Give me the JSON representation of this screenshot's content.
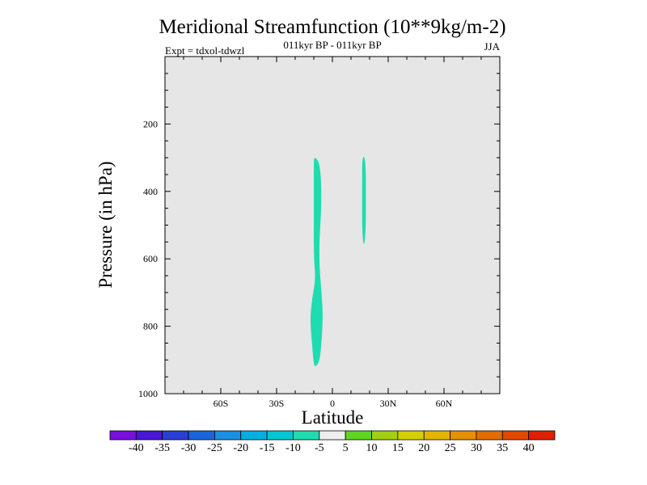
{
  "chart_data": {
    "type": "contour",
    "title": "Meridional Streamfunction (10**9kg/m-2)",
    "subtitle_center": "011kyr BP - 011kyr BP",
    "subtitle_left": "Expt = tdxol-tdwzl",
    "subtitle_right": "JJA",
    "xlabel": "Latitude",
    "ylabel": "Pressure (in hPa)",
    "xlim": [
      -90,
      90
    ],
    "ylim": [
      0,
      1000
    ],
    "y_inverted": true,
    "x_ticks": [
      {
        "value": -60,
        "label": "60S"
      },
      {
        "value": -30,
        "label": "30S"
      },
      {
        "value": 0,
        "label": "0"
      },
      {
        "value": 30,
        "label": "30N"
      },
      {
        "value": 60,
        "label": "60N"
      }
    ],
    "y_ticks": [
      {
        "value": 200,
        "label": "200"
      },
      {
        "value": 400,
        "label": "400"
      },
      {
        "value": 600,
        "label": "600"
      },
      {
        "value": 800,
        "label": "800"
      },
      {
        "value": 1000,
        "label": "1000"
      }
    ],
    "background_color": "#e6e6e6",
    "filled_regions": [
      {
        "level": "-10 to -5",
        "color": "#1edcb0",
        "outline": [
          [
            -9,
            300
          ],
          [
            -7,
            315
          ],
          [
            -6,
            370
          ],
          [
            -6,
            460
          ],
          [
            -7,
            540
          ],
          [
            -7,
            620
          ],
          [
            -6,
            690
          ],
          [
            -5,
            770
          ],
          [
            -6,
            860
          ],
          [
            -7,
            905
          ],
          [
            -9,
            920
          ],
          [
            -10,
            915
          ],
          [
            -11,
            850
          ],
          [
            -12,
            780
          ],
          [
            -11,
            720
          ],
          [
            -9,
            660
          ],
          [
            -10,
            600
          ],
          [
            -10,
            450
          ],
          [
            -10,
            360
          ],
          [
            -10,
            300
          ]
        ]
      },
      {
        "level": "-10 to -5",
        "color": "#1edcb0",
        "outline": [
          [
            17,
            290
          ],
          [
            18,
            330
          ],
          [
            18,
            420
          ],
          [
            18,
            510
          ],
          [
            17,
            570
          ],
          [
            16,
            520
          ],
          [
            16,
            440
          ],
          [
            16,
            360
          ],
          [
            16,
            310
          ]
        ]
      }
    ],
    "colorbar": {
      "colors": [
        "#7a0de0",
        "#4a16d8",
        "#2a3ed8",
        "#1a64e0",
        "#1a90e0",
        "#00b0e0",
        "#00c8d4",
        "#1edcb0",
        "#eeeeee",
        "#60d420",
        "#a0d010",
        "#d4d000",
        "#e4b400",
        "#e49000",
        "#e46c00",
        "#e44800",
        "#e02000"
      ],
      "labels": [
        "-40",
        "-35",
        "-30",
        "-25",
        "-20",
        "-15",
        "-10",
        "-5",
        "5",
        "10",
        "15",
        "20",
        "25",
        "30",
        "35",
        "40"
      ]
    }
  }
}
